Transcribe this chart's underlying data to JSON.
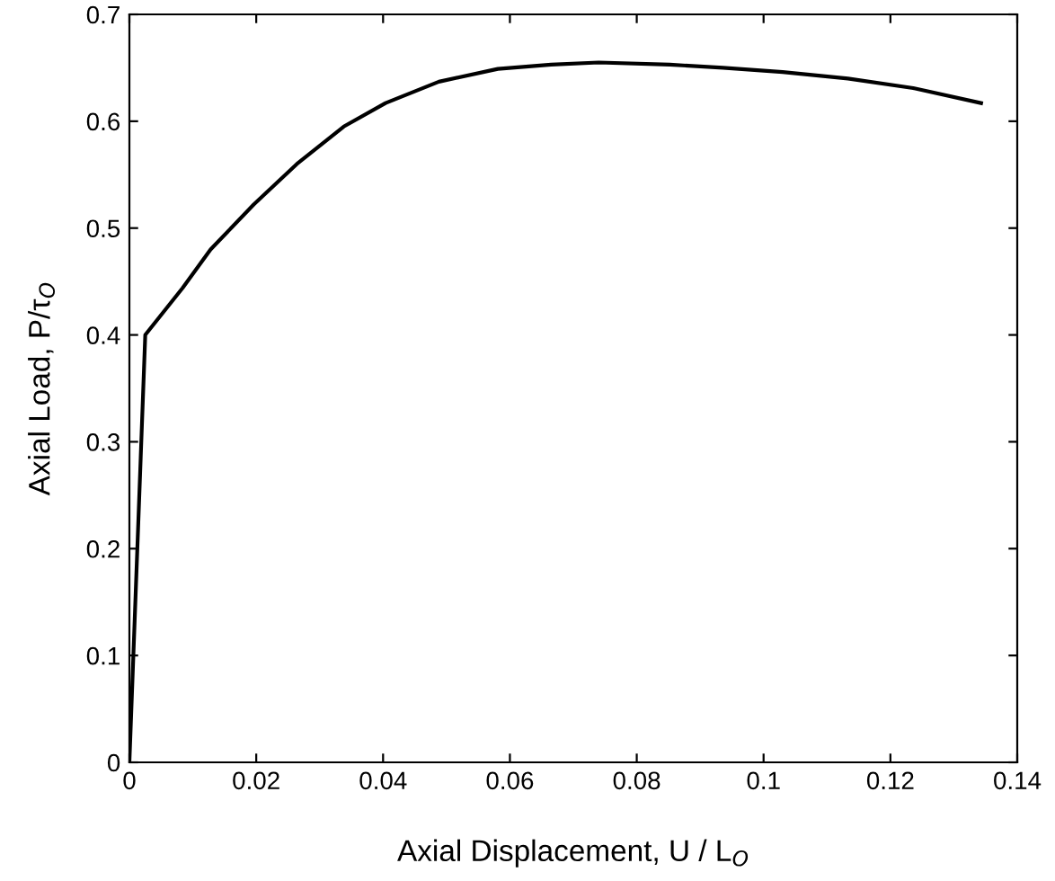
{
  "chart_data": {
    "type": "line",
    "xlabel": "Axial Displacement, U / L$_{O}$",
    "ylabel": "Axial Load, P/τ$_{O}$",
    "series": [
      {
        "color": "#000000",
        "x": [
          0,
          0.0025,
          0.0084,
          0.0128,
          0.0196,
          0.0264,
          0.0338,
          0.0404,
          0.0488,
          0.0581,
          0.0665,
          0.074,
          0.0852,
          0.0936,
          0.103,
          0.1133,
          0.1236,
          0.1343
        ],
        "values": [
          0,
          0.4,
          0.444,
          0.48,
          0.522,
          0.56,
          0.595,
          0.617,
          0.637,
          0.649,
          0.653,
          0.655,
          0.653,
          0.65,
          0.646,
          0.64,
          0.631,
          0.617
        ]
      }
    ],
    "xlim": [
      0,
      0.14
    ],
    "xticks": [
      0,
      0.02,
      0.04,
      0.06,
      0.08,
      {
        "value": 0.1,
        "label": "0.1"
      },
      0.12,
      0.14
    ],
    "ylim": [
      0,
      0.7
    ],
    "yticks": [
      0,
      0.1,
      0.2,
      0.3,
      0.4,
      0.5,
      0.6,
      0.7
    ],
    "grid": false,
    "legend": false,
    "marker": "none",
    "line_style": "solid"
  }
}
